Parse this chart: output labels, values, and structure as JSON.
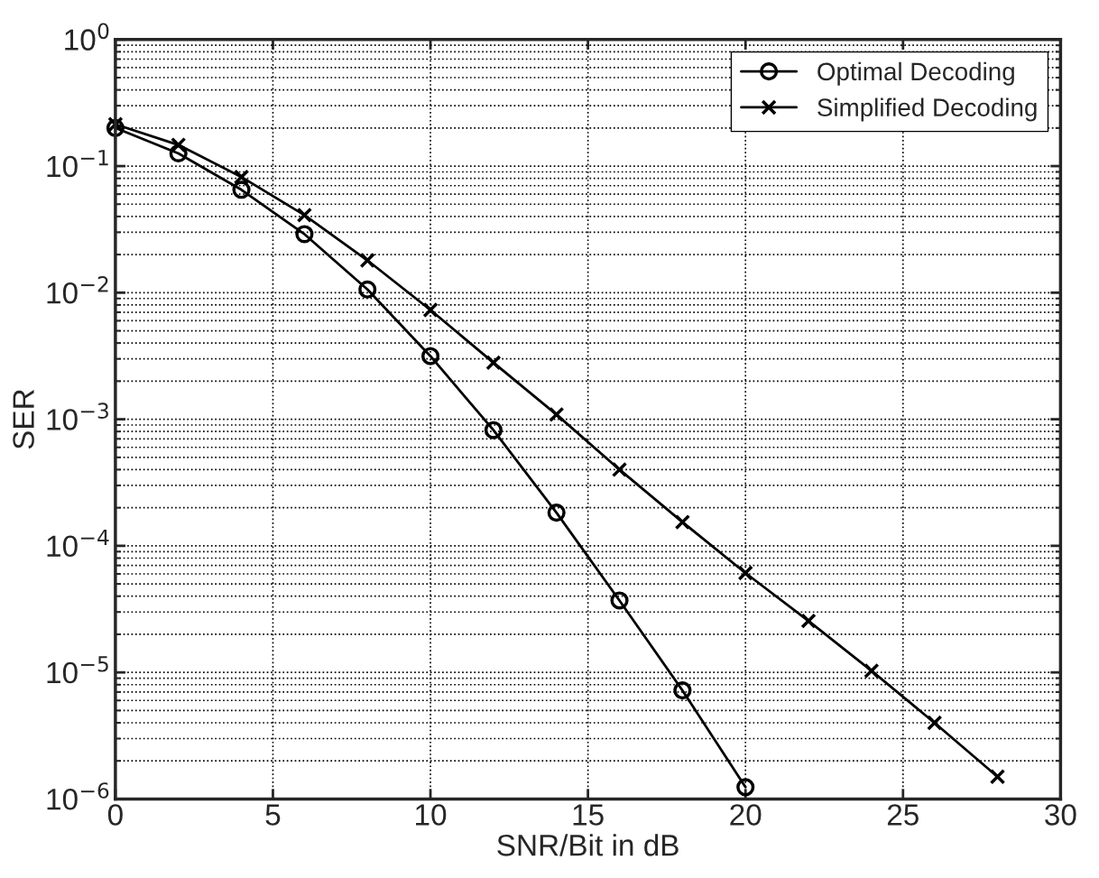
{
  "chart_data": {
    "type": "line",
    "xlabel": "SNR/Bit in dB",
    "ylabel": "SER",
    "log": "y",
    "grid": true,
    "legend": "top right",
    "xlim": [
      0,
      30
    ],
    "xticks": [
      0,
      5,
      10,
      15,
      20,
      25,
      30
    ],
    "ylim": [
      1e-06,
      1
    ],
    "yticks": [
      {
        "value": 1e-06,
        "label": "10$^{−6}$"
      },
      {
        "value": 1e-05,
        "label": "10$^{−5}$"
      },
      {
        "value": 0.0001,
        "label": "10$^{−4}$"
      },
      {
        "value": 0.001,
        "label": "10$^{−3}$"
      },
      {
        "value": 0.01,
        "label": "10$^{−2}$"
      },
      {
        "value": 0.1,
        "label": "10$^{−1}$"
      },
      {
        "value": 1,
        "label": "10$^{0}$"
      }
    ],
    "series": [
      {
        "name": "Optimal Decoding",
        "color": "#000000",
        "marker": "circle",
        "x": [
          0,
          2,
          4,
          6,
          8,
          10,
          12,
          14,
          16,
          18,
          20
        ],
        "values": [
          0.2,
          0.126,
          0.065,
          0.029,
          0.0106,
          0.00315,
          0.00082,
          0.000183,
          3.7e-05,
          7.2e-06,
          1.24e-06
        ]
      },
      {
        "name": "Simplified Decoding",
        "color": "#000000",
        "marker": "cross",
        "x": [
          0,
          2,
          4,
          6,
          8,
          10,
          12,
          14,
          16,
          18,
          20,
          22,
          24,
          26,
          28
        ],
        "values": [
          0.214,
          0.147,
          0.082,
          0.041,
          0.018,
          0.0073,
          0.0028,
          0.00109,
          0.0004,
          0.000154,
          6.1e-05,
          2.55e-05,
          1.03e-05,
          4e-06,
          1.5e-06
        ]
      }
    ]
  }
}
